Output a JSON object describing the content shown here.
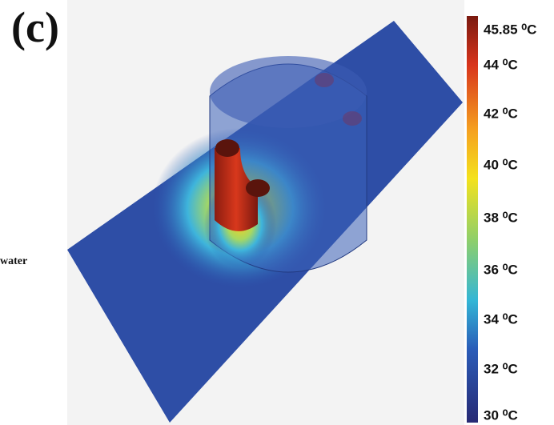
{
  "panel_label": "(c)",
  "side_text": "water",
  "colorbar": {
    "labels": [
      "45.85 ⁰C",
      "44 ⁰C",
      "42 ⁰C",
      "40 ⁰C",
      "38 ⁰C",
      "36 ⁰C",
      "34 ⁰C",
      "32 ⁰C",
      "30 ⁰C"
    ]
  }
}
